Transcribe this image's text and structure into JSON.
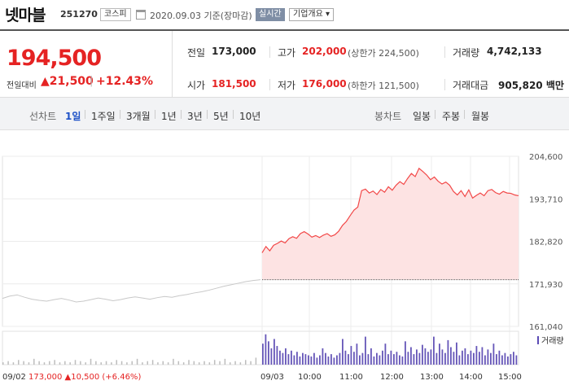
{
  "header": {
    "name": "넷마블",
    "code": "251270",
    "market": "코스피",
    "date": "2020.09.03",
    "basis": "기준(장마감)",
    "realtime": "실시간",
    "company_info": "기업개요 ▾"
  },
  "summary": {
    "price": "194,500",
    "prev_label": "전일대비",
    "change": "▲21,500",
    "change_pct": "+12.43%",
    "prev_close_label": "전일",
    "prev_close": "173,000",
    "high_label": "고가",
    "high": "202,000",
    "upper_limit": "(상한가 224,500)",
    "volume_label": "거래량",
    "volume": "4,742,133",
    "open_label": "시가",
    "open": "181,500",
    "low_label": "저가",
    "low": "176,000",
    "lower_limit": "(하한가 121,500)",
    "value_label": "거래대금",
    "value": "905,820 백만"
  },
  "tabs": {
    "line_label": "선차트",
    "line_periods": [
      "1일",
      "1주일",
      "3개월",
      "1년",
      "3년",
      "5년",
      "10년"
    ],
    "active": "1일",
    "candle_label": "봉차트",
    "candle_periods": [
      "일봉",
      "주봉",
      "월봉"
    ]
  },
  "chart_data": {
    "type": "line",
    "ylim": [
      161040,
      204600
    ],
    "y_ticks": [
      "204,600",
      "193,710",
      "182,820",
      "171,930",
      "161,040"
    ],
    "x_ticks": [
      "09/03",
      "10:00",
      "11:00",
      "12:00",
      "13:00",
      "14:00",
      "15:00"
    ],
    "prev_close": 173000,
    "previous_day_summary": {
      "date": "09/02",
      "close": "173,000",
      "change": "▲10,500",
      "change_pct": "(+6.46%)"
    },
    "volume_legend": "거래량",
    "series": [
      {
        "values_prev_day": [
          168200,
          168800,
          169100,
          168500,
          168000,
          167700,
          167500,
          167900,
          168200,
          167800,
          167300,
          167500,
          167900,
          168300,
          168000,
          167600,
          167900,
          168300,
          168600,
          168300,
          168000,
          168400,
          168700,
          168500,
          168900,
          169200,
          169600,
          169900,
          170300,
          170800,
          171300,
          171700,
          172100,
          172500,
          172800,
          173000
        ],
        "values_today": [
          179900,
          181500,
          180400,
          181800,
          182300,
          182900,
          182400,
          183500,
          184000,
          183600,
          184800,
          185300,
          184700,
          183900,
          184300,
          183800,
          184400,
          184800,
          184100,
          184500,
          185400,
          186900,
          187900,
          189400,
          190800,
          191600,
          195800,
          196200,
          195200,
          195700,
          194800,
          196100,
          195400,
          196800,
          195900,
          197200,
          198100,
          197400,
          198900,
          200200,
          199400,
          201500,
          200700,
          199800,
          198600,
          199300,
          198200,
          197500,
          198000,
          197200,
          195600,
          194700,
          195800,
          194300,
          196000,
          193900,
          194600,
          195200,
          194500,
          195800,
          196100,
          195300,
          194900,
          195600,
          195200,
          195100,
          194700,
          194500
        ]
      }
    ],
    "volume_prev_day": [
      2,
      3,
      2,
      4,
      3,
      2,
      5,
      3,
      2,
      3,
      4,
      2,
      3,
      2,
      4,
      3,
      2,
      5,
      3,
      2,
      3,
      2,
      4,
      3,
      2,
      3,
      5,
      2,
      3,
      4,
      2,
      3,
      2,
      5,
      3,
      2,
      4,
      3,
      2,
      3,
      2,
      4,
      3,
      5,
      2,
      3,
      2,
      4,
      3,
      6
    ],
    "volume_today": [
      18,
      26,
      20,
      14,
      22,
      16,
      12,
      10,
      14,
      9,
      12,
      8,
      11,
      7,
      10,
      9,
      8,
      7,
      10,
      6,
      8,
      14,
      10,
      7,
      9,
      6,
      8,
      10,
      22,
      12,
      9,
      16,
      11,
      18,
      8,
      10,
      24,
      9,
      14,
      7,
      10,
      8,
      12,
      18,
      9,
      12,
      9,
      11,
      8,
      7,
      20,
      11,
      15,
      9,
      13,
      10,
      17,
      14,
      11,
      13,
      24,
      10,
      18,
      13,
      10,
      21,
      15,
      11,
      19,
      8,
      12,
      14,
      9,
      12,
      10,
      16,
      11,
      15,
      8,
      13,
      10,
      18,
      9,
      12,
      8,
      10,
      7,
      9,
      11,
      8
    ]
  }
}
